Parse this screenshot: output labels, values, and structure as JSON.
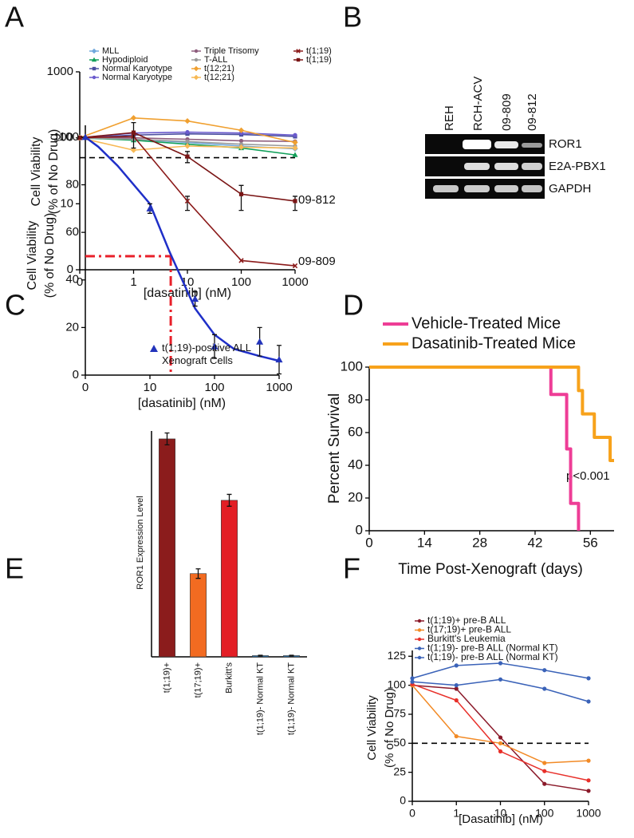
{
  "panel_labels": [
    "A",
    "B",
    "C",
    "D",
    "E",
    "F"
  ],
  "gel": {
    "lanes": [
      "REH",
      "RCH-ACV",
      "09-809",
      "09-812"
    ],
    "rows": [
      "ROR1",
      "E2A-PBX1",
      "GAPDH"
    ]
  },
  "chart_data": [
    {
      "type": "line",
      "xscale": "symlog",
      "yscale": "symlog",
      "xlabel": "[dasatinib] (nM)",
      "ylabel": [
        "Cell Viability",
        "(% of No Drug)"
      ],
      "x": [
        0,
        1,
        10,
        100,
        1000
      ],
      "xlim": [
        0,
        1000
      ],
      "xticks": [
        0,
        1,
        10,
        100,
        1000
      ],
      "ylim": [
        0,
        1000
      ],
      "yticks": [
        0,
        10,
        100,
        1000
      ],
      "hline": 50,
      "annotations": [
        "09-812",
        "09-809"
      ],
      "series": [
        {
          "name": "MLL",
          "color": "#6fa8dc",
          "marker": "diamond",
          "values": [
            100,
            95,
            85,
            75,
            68
          ]
        },
        {
          "name": "Hypodiploid",
          "color": "#12a05a",
          "marker": "triangle",
          "values": [
            100,
            92,
            80,
            70,
            55
          ]
        },
        {
          "name": "Normal Karyotype",
          "color": "#4b4fa0",
          "marker": "square",
          "values": [
            100,
            110,
            115,
            112,
            105
          ]
        },
        {
          "name": "Normal Karyotype",
          "color": "#6a5acd",
          "marker": "circle",
          "values": [
            100,
            118,
            122,
            118,
            110
          ]
        },
        {
          "name": "Triple Trisomy",
          "color": "#8e5d7d",
          "marker": "circle",
          "values": [
            100,
            100,
            95,
            90,
            88
          ]
        },
        {
          "name": "T-ALL",
          "color": "#9a9a9a",
          "marker": "circle",
          "values": [
            100,
            95,
            88,
            80,
            75
          ]
        },
        {
          "name": "t(12;21)",
          "color": "#f0a030",
          "marker": "diamond",
          "values": [
            100,
            200,
            180,
            130,
            85
          ]
        },
        {
          "name": "t(12;21)",
          "color": "#f7b955",
          "marker": "diamond",
          "values": [
            100,
            65,
            75,
            72,
            70
          ]
        },
        {
          "name": "t(1;19)",
          "color": "#8b1a1a",
          "marker": "x",
          "values": [
            100,
            105,
            11,
            1.4,
            0.6
          ],
          "errors": [
            null,
            null,
            2,
            null,
            null
          ]
        },
        {
          "name": "t(1;19)",
          "color": "#7a1515",
          "marker": "square",
          "values": [
            100,
            120,
            52,
            14,
            11
          ],
          "errors": [
            null,
            50,
            10,
            5,
            2
          ]
        }
      ]
    },
    {
      "type": "scatter",
      "xscale": "symlog",
      "xlabel": "[dasatinib] (nM)",
      "ylabel": [
        "Cell Viability",
        "(% of No Drug)"
      ],
      "xlim": [
        0,
        1000
      ],
      "xticks": [
        0,
        10,
        100,
        1000
      ],
      "ylim": [
        0,
        105
      ],
      "yticks": [
        0,
        20,
        40,
        60,
        80,
        100
      ],
      "legend": [
        "t(1;19)-positive ALL",
        "Xenograft Cells"
      ],
      "color": "#2233bb",
      "x": [
        0,
        10,
        50,
        100,
        500,
        1000
      ],
      "values": [
        100,
        70,
        32,
        12,
        14,
        6.5
      ],
      "errors": [
        null,
        2,
        3,
        5,
        6,
        6
      ],
      "curve": {
        "color": "#1f2fc8",
        "x": [
          0,
          2,
          5,
          10,
          20,
          50,
          100,
          200,
          500,
          1000
        ],
        "values": [
          100,
          96,
          88,
          72,
          52,
          28,
          17,
          11,
          8,
          6
        ]
      },
      "reference_lines": {
        "x": 21,
        "y": 50,
        "color": "#e8202a"
      }
    },
    {
      "type": "line",
      "xlabel": "Time Post-Xenograft (days)",
      "ylabel": [
        "Percent Survival"
      ],
      "xlim": [
        0,
        62
      ],
      "xticks": [
        0,
        14,
        28,
        42,
        56
      ],
      "ylim": [
        0,
        100
      ],
      "yticks": [
        0,
        20,
        40,
        60,
        80,
        100
      ],
      "annotations": [
        "p<0.001"
      ],
      "series": [
        {
          "name": "Vehicle-Treated Mice",
          "color": "#ee3d96",
          "x": [
            0,
            46,
            46,
            50,
            50,
            51,
            51,
            53,
            53
          ],
          "values": [
            100,
            100,
            83.3,
            83.3,
            50,
            50,
            16.7,
            16.7,
            0
          ]
        },
        {
          "name": "Dasatinib-Treated Mice",
          "color": "#f7a21b",
          "x": [
            0,
            53,
            53,
            54,
            54,
            57,
            57,
            61,
            61,
            62
          ],
          "values": [
            100,
            100,
            85.7,
            85.7,
            71.4,
            71.4,
            57.1,
            57.1,
            42.9,
            42.9
          ]
        }
      ]
    },
    {
      "type": "bar",
      "ylabel": [
        "ROR1 Expression Level"
      ],
      "ylim": [
        0,
        57
      ],
      "categories": [
        "t(1;19)+",
        "t(17;19)+",
        "Burkitt's",
        "t(1;19)- Normal KT",
        "t(1;19)- Normal KT"
      ],
      "values": [
        55,
        21,
        39.5,
        0.3,
        0.3
      ],
      "errors": [
        1.5,
        1.2,
        1.5,
        0.1,
        0.1
      ],
      "colors": [
        "#8b1c1c",
        "#f26b21",
        "#e31e25",
        "#2a7ab8",
        "#2a7ab8"
      ]
    },
    {
      "type": "line",
      "xscale": "symlog",
      "xlabel": "[Dasatinib] (nM)",
      "ylabel": [
        "Cell Viability",
        "(% of No Drug)"
      ],
      "x": [
        0,
        1,
        10,
        100,
        1000
      ],
      "xlim": [
        0,
        1000
      ],
      "xticks": [
        0,
        1,
        10,
        100,
        1000
      ],
      "ylim": [
        0,
        130
      ],
      "yticks": [
        0,
        25,
        50,
        75,
        100,
        125
      ],
      "hline": 50,
      "series": [
        {
          "name": "t(1;19)+ pre-B ALL",
          "color": "#8b1a2a",
          "marker": "circle",
          "values": [
            100,
            97,
            55,
            15,
            9
          ]
        },
        {
          "name": "t(17;19)+ pre-B ALL",
          "color": "#f28a25",
          "marker": "circle",
          "values": [
            100,
            56,
            50,
            33,
            35
          ]
        },
        {
          "name": "Burkitt's Leukemia",
          "color": "#e8302a",
          "marker": "circle",
          "values": [
            101,
            87,
            43,
            26,
            18
          ]
        },
        {
          "name": "t(1;19)- pre-B ALL (Normal KT)",
          "color": "#3a62b8",
          "marker": "circle",
          "values": [
            106,
            117,
            119,
            113,
            106
          ]
        },
        {
          "name": "t(1;19)- pre-B ALL (Normal KT)",
          "color": "#3a62b8",
          "marker": "circle",
          "values": [
            103,
            100,
            105,
            97,
            86
          ]
        }
      ]
    }
  ]
}
